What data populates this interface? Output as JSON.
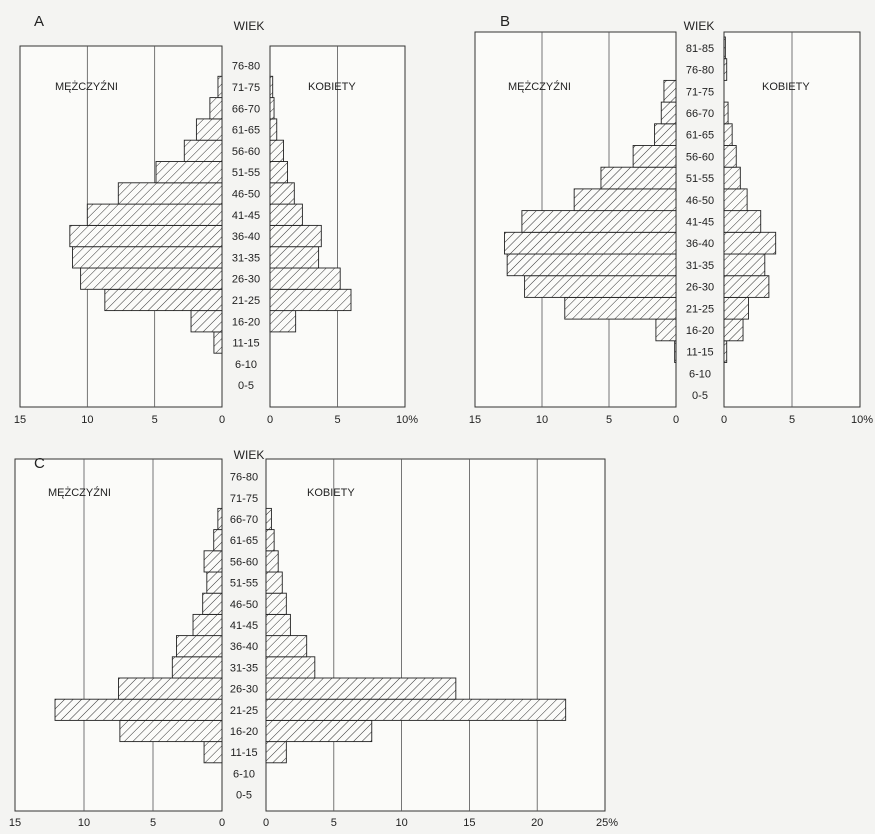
{
  "chart_data": [
    {
      "type": "bar",
      "panel": "A",
      "age_header": "WIEK",
      "left_label": "MĘŻCZYŹNI",
      "right_label": "KOBIETY",
      "age_groups": [
        "0-5",
        "6-10",
        "11-15",
        "16-20",
        "21-25",
        "26-30",
        "31-35",
        "36-40",
        "41-45",
        "46-50",
        "51-55",
        "56-60",
        "61-65",
        "66-70",
        "71-75",
        "76-80"
      ],
      "series": [
        {
          "name": "MĘŻCZYŹNI",
          "values": [
            0,
            0,
            0.6,
            2.3,
            8.7,
            10.5,
            11.1,
            11.3,
            10.0,
            7.7,
            4.9,
            2.8,
            1.9,
            0.9,
            0.3,
            0
          ]
        },
        {
          "name": "KOBIETY",
          "values": [
            0,
            0,
            0,
            1.9,
            6.0,
            5.2,
            3.6,
            3.8,
            2.4,
            1.8,
            1.3,
            1.0,
            0.5,
            0.3,
            0.2,
            0
          ]
        }
      ],
      "left_ticks": [
        "15",
        "10",
        "5",
        "0"
      ],
      "right_ticks": [
        "0",
        "5",
        "10%"
      ],
      "left_max": 15,
      "right_max": 10
    },
    {
      "type": "bar",
      "panel": "B",
      "age_header": "WIEK",
      "left_label": "MĘŻCZYŹNI",
      "right_label": "KOBIETY",
      "age_groups": [
        "0-5",
        "6-10",
        "11-15",
        "16-20",
        "21-25",
        "26-30",
        "31-35",
        "36-40",
        "41-45",
        "46-50",
        "51-55",
        "56-60",
        "61-65",
        "66-70",
        "71-75",
        "76-80",
        "81-85"
      ],
      "series": [
        {
          "name": "MĘŻCZYŹNI",
          "values": [
            0,
            0,
            0.1,
            1.5,
            8.3,
            11.3,
            12.6,
            12.8,
            11.5,
            7.6,
            5.6,
            3.2,
            1.6,
            1.1,
            0.9,
            0,
            0
          ]
        },
        {
          "name": "KOBIETY",
          "values": [
            0,
            0,
            0.2,
            1.4,
            1.8,
            3.3,
            3.0,
            3.8,
            2.7,
            1.7,
            1.2,
            0.9,
            0.6,
            0.3,
            0,
            0.2,
            0.1
          ]
        }
      ],
      "left_ticks": [
        "15",
        "10",
        "5",
        "0"
      ],
      "right_ticks": [
        "0",
        "5",
        "10%"
      ],
      "left_max": 15,
      "right_max": 10
    },
    {
      "type": "bar",
      "panel": "C",
      "age_header": "WIEK",
      "left_label": "MĘŻCZYŹNI",
      "right_label": "KOBIETY",
      "age_groups": [
        "0-5",
        "6-10",
        "11-15",
        "16-20",
        "21-25",
        "26-30",
        "31-35",
        "36-40",
        "41-45",
        "46-50",
        "51-55",
        "56-60",
        "61-65",
        "66-70",
        "71-75",
        "76-80"
      ],
      "series": [
        {
          "name": "MĘŻCZYŹNI",
          "values": [
            0,
            0,
            1.3,
            7.4,
            12.1,
            7.5,
            3.6,
            3.3,
            2.1,
            1.4,
            1.1,
            1.3,
            0.6,
            0.3,
            0,
            0
          ]
        },
        {
          "name": "KOBIETY",
          "values": [
            0,
            0,
            1.5,
            7.8,
            22.1,
            14.0,
            3.6,
            3.0,
            1.8,
            1.5,
            1.2,
            0.9,
            0.6,
            0.4,
            0,
            0
          ]
        }
      ],
      "left_ticks": [
        "15",
        "10",
        "5",
        "0"
      ],
      "right_ticks": [
        "0",
        "5",
        "10",
        "15",
        "20",
        "25%"
      ],
      "left_max": 15,
      "right_max": 25
    }
  ]
}
